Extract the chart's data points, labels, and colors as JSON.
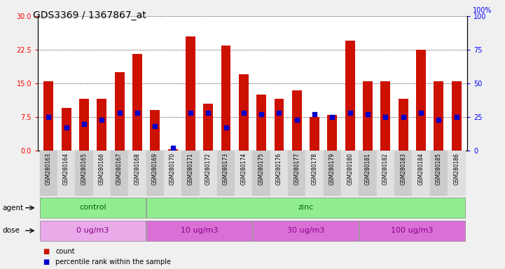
{
  "title": "GDS3369 / 1367867_at",
  "samples": [
    "GSM280163",
    "GSM280164",
    "GSM280165",
    "GSM280166",
    "GSM280167",
    "GSM280168",
    "GSM280169",
    "GSM280170",
    "GSM280171",
    "GSM280172",
    "GSM280173",
    "GSM280174",
    "GSM280175",
    "GSM280176",
    "GSM280177",
    "GSM280178",
    "GSM280179",
    "GSM280180",
    "GSM280181",
    "GSM280182",
    "GSM280183",
    "GSM280184",
    "GSM280185",
    "GSM280186"
  ],
  "counts": [
    15.5,
    9.5,
    11.5,
    11.5,
    17.5,
    21.5,
    9.0,
    0.3,
    25.5,
    10.5,
    23.5,
    17.0,
    12.5,
    11.5,
    13.5,
    7.5,
    8.0,
    24.5,
    15.5,
    15.5,
    11.5,
    22.5,
    15.5,
    15.5
  ],
  "percentile_ranks_pct": [
    25,
    17,
    20,
    23,
    28,
    28,
    18,
    2,
    28,
    28,
    17,
    28,
    27,
    28,
    23,
    27,
    25,
    28,
    27,
    25,
    25,
    28,
    23,
    25
  ],
  "agent_groups": [
    {
      "label": "control",
      "start": 0,
      "end": 5,
      "color": "#90EE90"
    },
    {
      "label": "zinc",
      "start": 6,
      "end": 23,
      "color": "#90EE90"
    }
  ],
  "dose_groups": [
    {
      "label": "0 ug/m3",
      "start": 0,
      "end": 5,
      "color": "#EAAAEA"
    },
    {
      "label": "10 ug/m3",
      "start": 6,
      "end": 11,
      "color": "#DA70D6"
    },
    {
      "label": "30 ug/m3",
      "start": 12,
      "end": 17,
      "color": "#DA70D6"
    },
    {
      "label": "100 ug/m3",
      "start": 18,
      "end": 23,
      "color": "#DA70D6"
    }
  ],
  "ylim_left": [
    0,
    30
  ],
  "ylim_right": [
    0,
    100
  ],
  "yticks_left": [
    0,
    7.5,
    15,
    22.5,
    30
  ],
  "yticks_right": [
    0,
    25,
    50,
    75,
    100
  ],
  "bar_color": "#CC1100",
  "dot_color": "#0000CC",
  "fig_bg_color": "#F0F0F0",
  "plot_bg": "#FFFFFF",
  "title_fontsize": 10,
  "bar_width": 0.55
}
